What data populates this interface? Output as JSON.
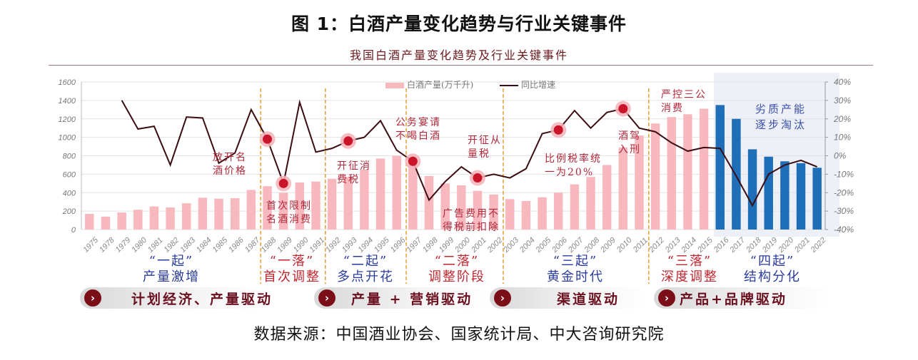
{
  "header": {
    "figure_title": "图 1：白酒产量变化趋势与行业关键事件",
    "chart_subtitle": "我国白酒产量变化趋势及行业关键事件"
  },
  "legend": {
    "bar_label": "白酒产量(万千升)",
    "line_label": "同比增速"
  },
  "colors": {
    "bar_pink": "#f7b8be",
    "bar_blue": "#1f6fb8",
    "line": "#3b0d12",
    "event_dot": "#c9142a",
    "divider": "#e0a030",
    "blue_text": "#2b3c9e",
    "red_text": "#c0262f"
  },
  "eras": [
    {
      "quote": "“一起”",
      "desc": "产量激增",
      "tone": "blue"
    },
    {
      "quote": "“一落”",
      "desc": "首次调整",
      "tone": "red"
    },
    {
      "quote": "“二起”",
      "desc": "多点开花",
      "tone": "blue"
    },
    {
      "quote": "“二落”",
      "desc": "调整阶段",
      "tone": "red"
    },
    {
      "quote": "“三起”",
      "desc": "黄金时代",
      "tone": "blue"
    },
    {
      "quote": "“三落”",
      "desc": "深度调整",
      "tone": "red"
    },
    {
      "quote": "“四起”",
      "desc": "结构分化",
      "tone": "blue"
    }
  ],
  "drivers": [
    {
      "label": "计划经济、产量驱动",
      "icon": "chevron-right-icon"
    },
    {
      "label": "产量 + 营销驱动",
      "icon": "chevron-right-icon"
    },
    {
      "label": "渠道驱动",
      "icon": "chevron-right-icon"
    },
    {
      "label": "产品+品牌驱动",
      "icon": "chevron-right-icon"
    }
  ],
  "annotations": {
    "a1": [
      "放开名",
      "酒价格"
    ],
    "a2": [
      "首次限制",
      "名酒消费"
    ],
    "a3": [
      "开征消",
      "费税"
    ],
    "a4": [
      "公务宴请",
      "不喝白酒"
    ],
    "a5": [
      "开征从",
      "量税"
    ],
    "a6": [
      "广告费用不",
      "得税前扣除"
    ],
    "a7": [
      "比例税率统",
      "一为20%"
    ],
    "a8": [
      "酒驾",
      "入刑"
    ],
    "a9": [
      "严控三公",
      "消费"
    ],
    "a10": [
      "劣质产能",
      "逐步淘汰"
    ]
  },
  "source": "数据来源：中国酒业协会、国家统计局、中大咨询研究院",
  "chart_data": {
    "type": "bar+line",
    "title": "我国白酒产量变化趋势及行业关键事件",
    "categories": [
      "1975",
      "1978",
      "1979",
      "1980",
      "1981",
      "1982",
      "1983",
      "1984",
      "1985",
      "1986",
      "1987",
      "1988",
      "1989",
      "1990",
      "1991",
      "1992",
      "1993",
      "1994",
      "1995",
      "1996",
      "1997",
      "1998",
      "1999",
      "2000",
      "2001",
      "2002",
      "2003",
      "2004",
      "2005",
      "2006",
      "2007",
      "2008",
      "2009",
      "2010",
      "2011",
      "2012",
      "2013",
      "2014",
      "2015",
      "2016",
      "2017",
      "2018",
      "2019",
      "2020",
      "2021",
      "2022"
    ],
    "series": [
      {
        "name": "白酒产量(万千升)",
        "type": "bar",
        "axis": "left",
        "values": [
          170,
          140,
          185,
          215,
          250,
          240,
          285,
          345,
          335,
          340,
          430,
          470,
          400,
          510,
          520,
          550,
          570,
          650,
          770,
          800,
          710,
          580,
          500,
          480,
          420,
          380,
          330,
          310,
          350,
          400,
          490,
          570,
          700,
          890,
          1020,
          1150,
          1220,
          1250,
          1310,
          1350,
          1200,
          870,
          790,
          740,
          720,
          670
        ]
      },
      {
        "name": "同比增速",
        "type": "line",
        "axis": "right",
        "unit": "%",
        "values": [
          null,
          null,
          30,
          14.5,
          16,
          -5,
          21,
          20.5,
          -4,
          1.5,
          25,
          9,
          -15,
          29,
          2,
          4,
          8,
          10,
          19,
          3,
          -3,
          -24,
          -14,
          -6,
          -12,
          -10,
          -12,
          -7,
          12,
          14,
          24.5,
          15,
          23.5,
          25.5,
          15,
          13,
          7,
          2.5,
          4.5,
          4,
          -11,
          -27,
          -10,
          -5,
          -2.5,
          -6
        ]
      }
    ],
    "left_axis": {
      "ticks": [
        0,
        200,
        400,
        600,
        800,
        1000,
        1200,
        1400,
        1600
      ],
      "ylim": [
        0,
        1600
      ]
    },
    "right_axis": {
      "ticks": [
        "-40%",
        "-30%",
        "-20%",
        "-10%",
        "0%",
        "10%",
        "20%",
        "30%",
        "40%"
      ],
      "ylim": [
        -40,
        40
      ]
    },
    "blue_bar_years": [
      "2016",
      "2017",
      "2018",
      "2019",
      "2020",
      "2021",
      "2022"
    ],
    "event_markers": [
      "1988",
      "1989",
      "1993",
      "1997",
      "2001",
      "2006",
      "2010"
    ],
    "dividers_at": [
      "1988",
      "1992",
      "1997",
      "2003",
      "2012"
    ],
    "grid": true,
    "legend_position": "top-center"
  }
}
